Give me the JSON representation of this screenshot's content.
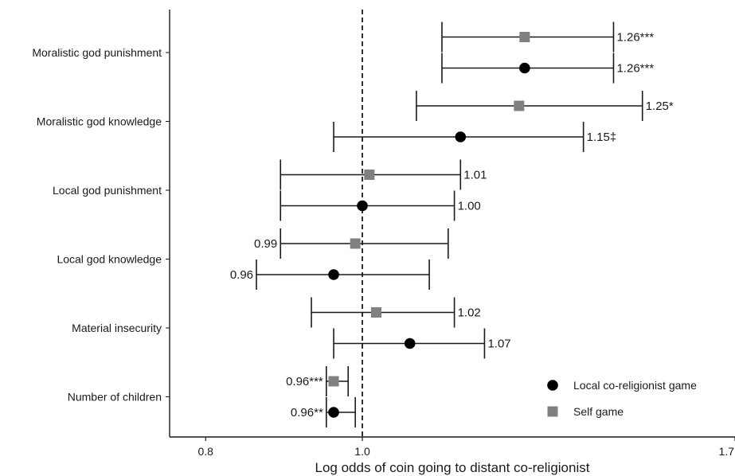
{
  "chart_data": {
    "type": "forest",
    "xlabel": "Log odds of coin going to distant co-religionist",
    "ylabel": "",
    "title": "",
    "x_scale": "log",
    "xlim": [
      0.76,
      1.7
    ],
    "x_ticks": [
      {
        "value": 0.8,
        "label": "0.8"
      },
      {
        "value": 1.0,
        "label": "1.0"
      },
      {
        "value": 1.7,
        "label": "1.7"
      }
    ],
    "reference_line": 1.0,
    "grid": false,
    "legend_position": "bottom-right",
    "categories": [
      "Moralistic god punishment",
      "Moralistic god knowledge",
      "Local god punishment",
      "Local god knowledge",
      "Material insecurity",
      "Number of children"
    ],
    "series": [
      {
        "name": "Self game",
        "marker": "square",
        "color": "#808080",
        "points": [
          {
            "category": "Moralistic god punishment",
            "estimate": 1.26,
            "lower": 1.12,
            "upper": 1.43,
            "label": "1.26***",
            "label_side": "right"
          },
          {
            "category": "Moralistic god knowledge",
            "estimate": 1.25,
            "lower": 1.08,
            "upper": 1.49,
            "label": "1.25*",
            "label_side": "right"
          },
          {
            "category": "Local god punishment",
            "estimate": 1.01,
            "lower": 0.89,
            "upper": 1.15,
            "label": "1.01",
            "label_side": "right"
          },
          {
            "category": "Local god knowledge",
            "estimate": 0.99,
            "lower": 0.89,
            "upper": 1.13,
            "label": "0.99",
            "label_side": "left"
          },
          {
            "category": "Material insecurity",
            "estimate": 1.02,
            "lower": 0.93,
            "upper": 1.14,
            "label": "1.02",
            "label_side": "right"
          },
          {
            "category": "Number of children",
            "estimate": 0.96,
            "lower": 0.95,
            "upper": 0.98,
            "label": "0.96***",
            "label_side": "left"
          }
        ]
      },
      {
        "name": "Local co-religionist game",
        "marker": "circle",
        "color": "#000000",
        "points": [
          {
            "category": "Moralistic god punishment",
            "estimate": 1.26,
            "lower": 1.12,
            "upper": 1.43,
            "label": "1.26***",
            "label_side": "right"
          },
          {
            "category": "Moralistic god knowledge",
            "estimate": 1.15,
            "lower": 0.96,
            "upper": 1.37,
            "label": "1.15‡",
            "label_side": "right"
          },
          {
            "category": "Local god punishment",
            "estimate": 1.0,
            "lower": 0.89,
            "upper": 1.14,
            "label": "1.00",
            "label_side": "right"
          },
          {
            "category": "Local god knowledge",
            "estimate": 0.96,
            "lower": 0.86,
            "upper": 1.1,
            "label": "0.96",
            "label_side": "left"
          },
          {
            "category": "Material insecurity",
            "estimate": 1.07,
            "lower": 0.96,
            "upper": 1.19,
            "label": "1.07",
            "label_side": "right"
          },
          {
            "category": "Number of children",
            "estimate": 0.96,
            "lower": 0.95,
            "upper": 0.99,
            "label": "0.96**",
            "label_side": "left"
          }
        ]
      }
    ],
    "legend": [
      {
        "name": "Local co-religionist game",
        "marker": "circle",
        "color": "#000000"
      },
      {
        "name": "Self game",
        "marker": "square",
        "color": "#808080"
      }
    ]
  }
}
